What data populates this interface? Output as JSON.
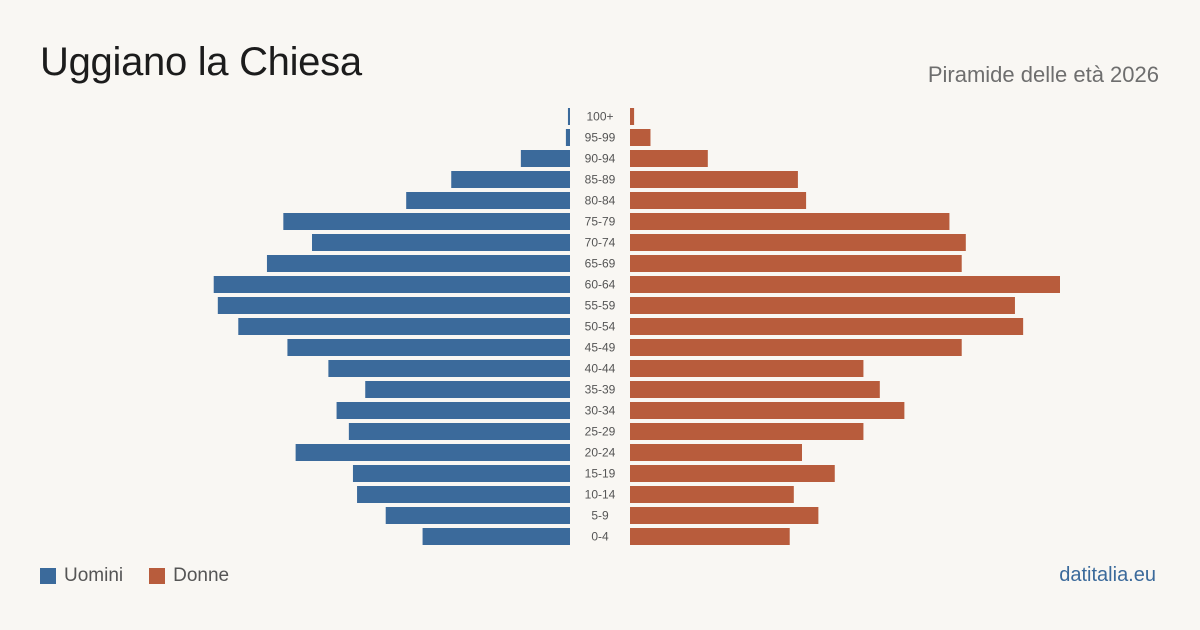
{
  "title": "Uggiano la Chiesa",
  "subtitle": "Piramide delle età 2026",
  "legend": {
    "men_label": "Uomini",
    "women_label": "Donne",
    "men_color": "#3b6a9b",
    "women_color": "#b85c3c"
  },
  "footer": {
    "link": "datitalia.eu"
  },
  "chart_data": {
    "type": "bar",
    "orientation": "horizontal-diverging",
    "categories": [
      "100+",
      "95-99",
      "90-94",
      "85-89",
      "80-84",
      "75-79",
      "70-74",
      "65-69",
      "60-64",
      "55-59",
      "50-54",
      "45-49",
      "40-44",
      "35-39",
      "30-34",
      "25-29",
      "20-24",
      "15-19",
      "10-14",
      "5-9",
      "0-4"
    ],
    "series": [
      {
        "name": "Uomini",
        "color": "#3b6a9b",
        "values": [
          0.5,
          1,
          12,
          29,
          40,
          70,
          63,
          74,
          87,
          86,
          81,
          69,
          59,
          50,
          57,
          54,
          67,
          53,
          52,
          45,
          36
        ]
      },
      {
        "name": "Donne",
        "color": "#b85c3c",
        "values": [
          1,
          5,
          19,
          41,
          43,
          78,
          82,
          81,
          105,
          94,
          96,
          81,
          57,
          61,
          67,
          57,
          42,
          50,
          40,
          46,
          39
        ]
      }
    ],
    "xmax": 105,
    "grid": false,
    "legend_position": "bottom-left"
  }
}
